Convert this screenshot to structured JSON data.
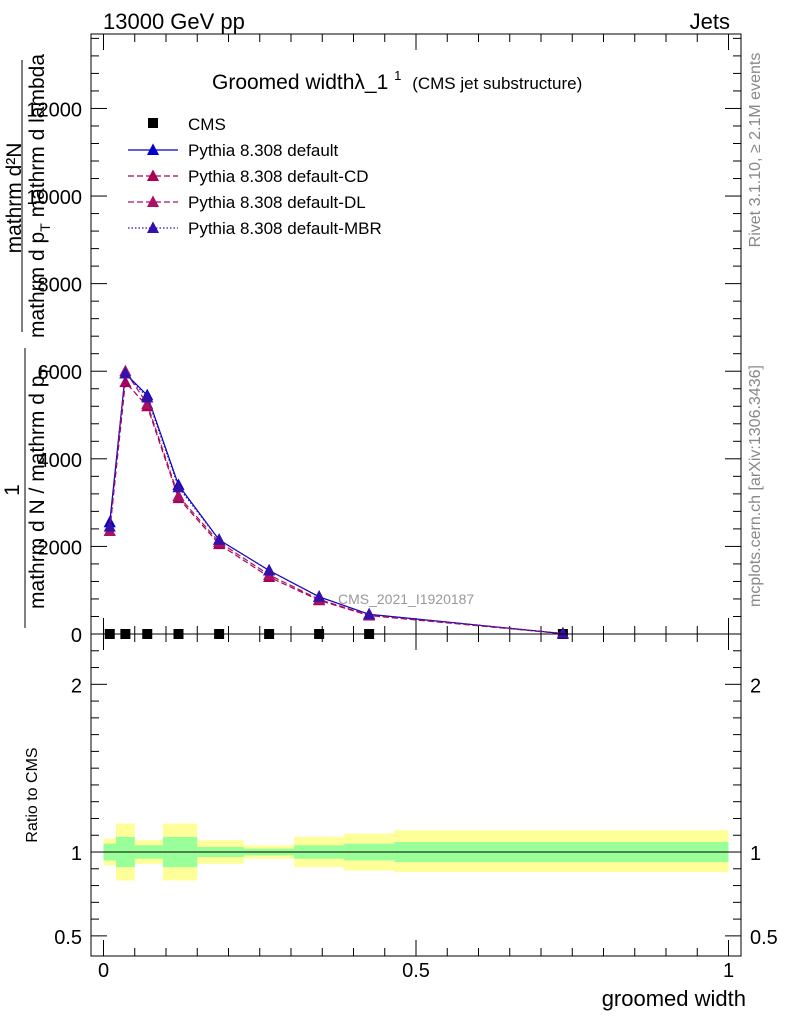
{
  "header": {
    "left": "13000 GeV pp",
    "right": "Jets"
  },
  "side": {
    "rivet": "Rivet 3.1.10, ≥ 2.1M events",
    "mcplots": "mcplots.cern.ch [arXiv:1306.3436]"
  },
  "watermark": "CMS_2021_I1920187",
  "title": {
    "main": "Groomed widthλ_1",
    "sup": "1",
    "sub": "(CMS jet substructure)"
  },
  "ylabel": {
    "one": "1",
    "frac_top": "mathrm d²N",
    "frac_bottom": "mathrm d p",
    "frac_bottom_sub": "T",
    "frac_bottom_rest": " mathrm d lambda",
    "denominator": "mathrm d N / mathrm d p",
    "denominator_sub": "T"
  },
  "ratio_ylabel": "Ratio to CMS",
  "xlabel": "groomed width",
  "colors": {
    "default": "#0000cc",
    "cd": "#aa0055",
    "dl": "#aa1166",
    "mbr": "#3311aa",
    "band_inner": "#99ff99",
    "band_outer": "#ffff99"
  },
  "legend": [
    {
      "label": "CMS",
      "marker": "square",
      "color": "#000000",
      "dash": "none"
    },
    {
      "label": "Pythia 8.308 default",
      "marker": "triangle",
      "color": "#0000cc",
      "dash": "solid"
    },
    {
      "label": "Pythia 8.308 default-CD",
      "marker": "triangle",
      "color": "#aa0055",
      "dash": "dashed"
    },
    {
      "label": "Pythia 8.308 default-DL",
      "marker": "triangle",
      "color": "#aa1166",
      "dash": "dashed"
    },
    {
      "label": "Pythia 8.308 default-MBR",
      "marker": "triangle",
      "color": "#3311aa",
      "dash": "dotted"
    }
  ],
  "chart_data": [
    {
      "type": "line",
      "panel": "main",
      "xlim": [
        -0.02,
        1.02
      ],
      "ylim": [
        0,
        13700
      ],
      "yticks_major": [
        0,
        2000,
        4000,
        6000,
        8000,
        10000,
        12000
      ],
      "ytick_labels": [
        "0",
        "2000",
        "4000",
        "6000",
        "8000",
        "10000",
        "12000"
      ],
      "x": [
        0.01,
        0.035,
        0.07,
        0.12,
        0.185,
        0.265,
        0.345,
        0.425,
        0.735
      ],
      "series": [
        {
          "name": "CMS",
          "values": [
            0,
            0,
            0,
            0,
            0,
            0,
            0,
            0,
            0
          ]
        },
        {
          "name": "Pythia 8.308 default",
          "values": [
            2550,
            5950,
            5450,
            3400,
            2150,
            1450,
            850,
            450,
            10
          ]
        },
        {
          "name": "Pythia 8.308 default-CD",
          "values": [
            2350,
            5750,
            5200,
            3100,
            2050,
            1300,
            770,
            420,
            8
          ]
        },
        {
          "name": "Pythia 8.308 default-DL",
          "values": [
            2350,
            6000,
            5250,
            3150,
            2100,
            1350,
            790,
            430,
            9
          ]
        },
        {
          "name": "Pythia 8.308 default-MBR",
          "values": [
            2450,
            5950,
            5400,
            3350,
            2150,
            1450,
            850,
            450,
            10
          ]
        }
      ]
    },
    {
      "type": "area",
      "panel": "ratio",
      "xlim": [
        -0.02,
        1.02
      ],
      "ylim": [
        0.38,
        2.3
      ],
      "yticks_major": [
        0.5,
        1,
        2
      ],
      "ytick_labels": [
        "0.5",
        "1",
        "2"
      ],
      "xticks_major": [
        0,
        0.5,
        1
      ],
      "xtick_labels": [
        "0",
        "0.5",
        "1"
      ],
      "bins": [
        {
          "x0": 0.0,
          "x1": 0.02,
          "inner": [
            0.95,
            1.05
          ],
          "outer": [
            0.92,
            1.08
          ]
        },
        {
          "x0": 0.02,
          "x1": 0.05,
          "inner": [
            0.91,
            1.09
          ],
          "outer": [
            0.83,
            1.17
          ]
        },
        {
          "x0": 0.05,
          "x1": 0.095,
          "inner": [
            0.96,
            1.04
          ],
          "outer": [
            0.93,
            1.07
          ]
        },
        {
          "x0": 0.095,
          "x1": 0.15,
          "inner": [
            0.91,
            1.09
          ],
          "outer": [
            0.83,
            1.17
          ]
        },
        {
          "x0": 0.15,
          "x1": 0.225,
          "inner": [
            0.97,
            1.03
          ],
          "outer": [
            0.93,
            1.07
          ]
        },
        {
          "x0": 0.225,
          "x1": 0.305,
          "inner": [
            0.98,
            1.02
          ],
          "outer": [
            0.96,
            1.04
          ]
        },
        {
          "x0": 0.305,
          "x1": 0.385,
          "inner": [
            0.96,
            1.04
          ],
          "outer": [
            0.91,
            1.09
          ]
        },
        {
          "x0": 0.385,
          "x1": 0.465,
          "inner": [
            0.95,
            1.05
          ],
          "outer": [
            0.89,
            1.11
          ]
        },
        {
          "x0": 0.465,
          "x1": 1.0,
          "inner": [
            0.94,
            1.06
          ],
          "outer": [
            0.88,
            1.13
          ]
        }
      ],
      "reference_line": 1
    }
  ]
}
